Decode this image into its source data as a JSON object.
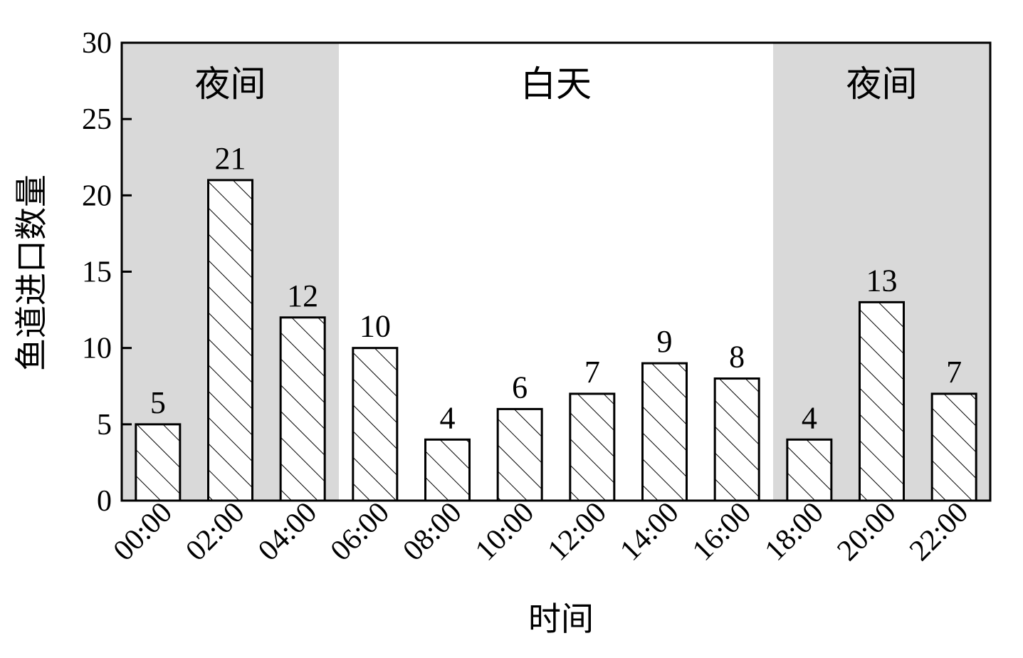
{
  "chart_data": {
    "type": "bar",
    "xlabel": "时间",
    "ylabel": "鱼道进口数量",
    "ylim": [
      0,
      30
    ],
    "yticks": [
      0,
      5,
      10,
      15,
      20,
      25,
      30
    ],
    "grid": false,
    "categories": [
      "00:00",
      "02:00",
      "04:00",
      "06:00",
      "08:00",
      "10:00",
      "12:00",
      "14:00",
      "16:00",
      "18:00",
      "20:00",
      "22:00"
    ],
    "values": [
      5,
      21,
      12,
      10,
      4,
      6,
      7,
      9,
      8,
      4,
      13,
      7
    ],
    "bar_fill": "diagonal-hatch",
    "regions": [
      {
        "label": "夜间",
        "from_category": "00:00",
        "to_category": "04:00",
        "shaded": true
      },
      {
        "label": "白天",
        "from_category": "06:00",
        "to_category": "16:00",
        "shaded": false
      },
      {
        "label": "夜间",
        "from_category": "18:00",
        "to_category": "22:00",
        "shaded": true
      }
    ],
    "colors": {
      "night_shade": "#d9d9d9",
      "bar_fill": "#ffffff",
      "hatch": "#000000",
      "axis": "#000000"
    }
  }
}
